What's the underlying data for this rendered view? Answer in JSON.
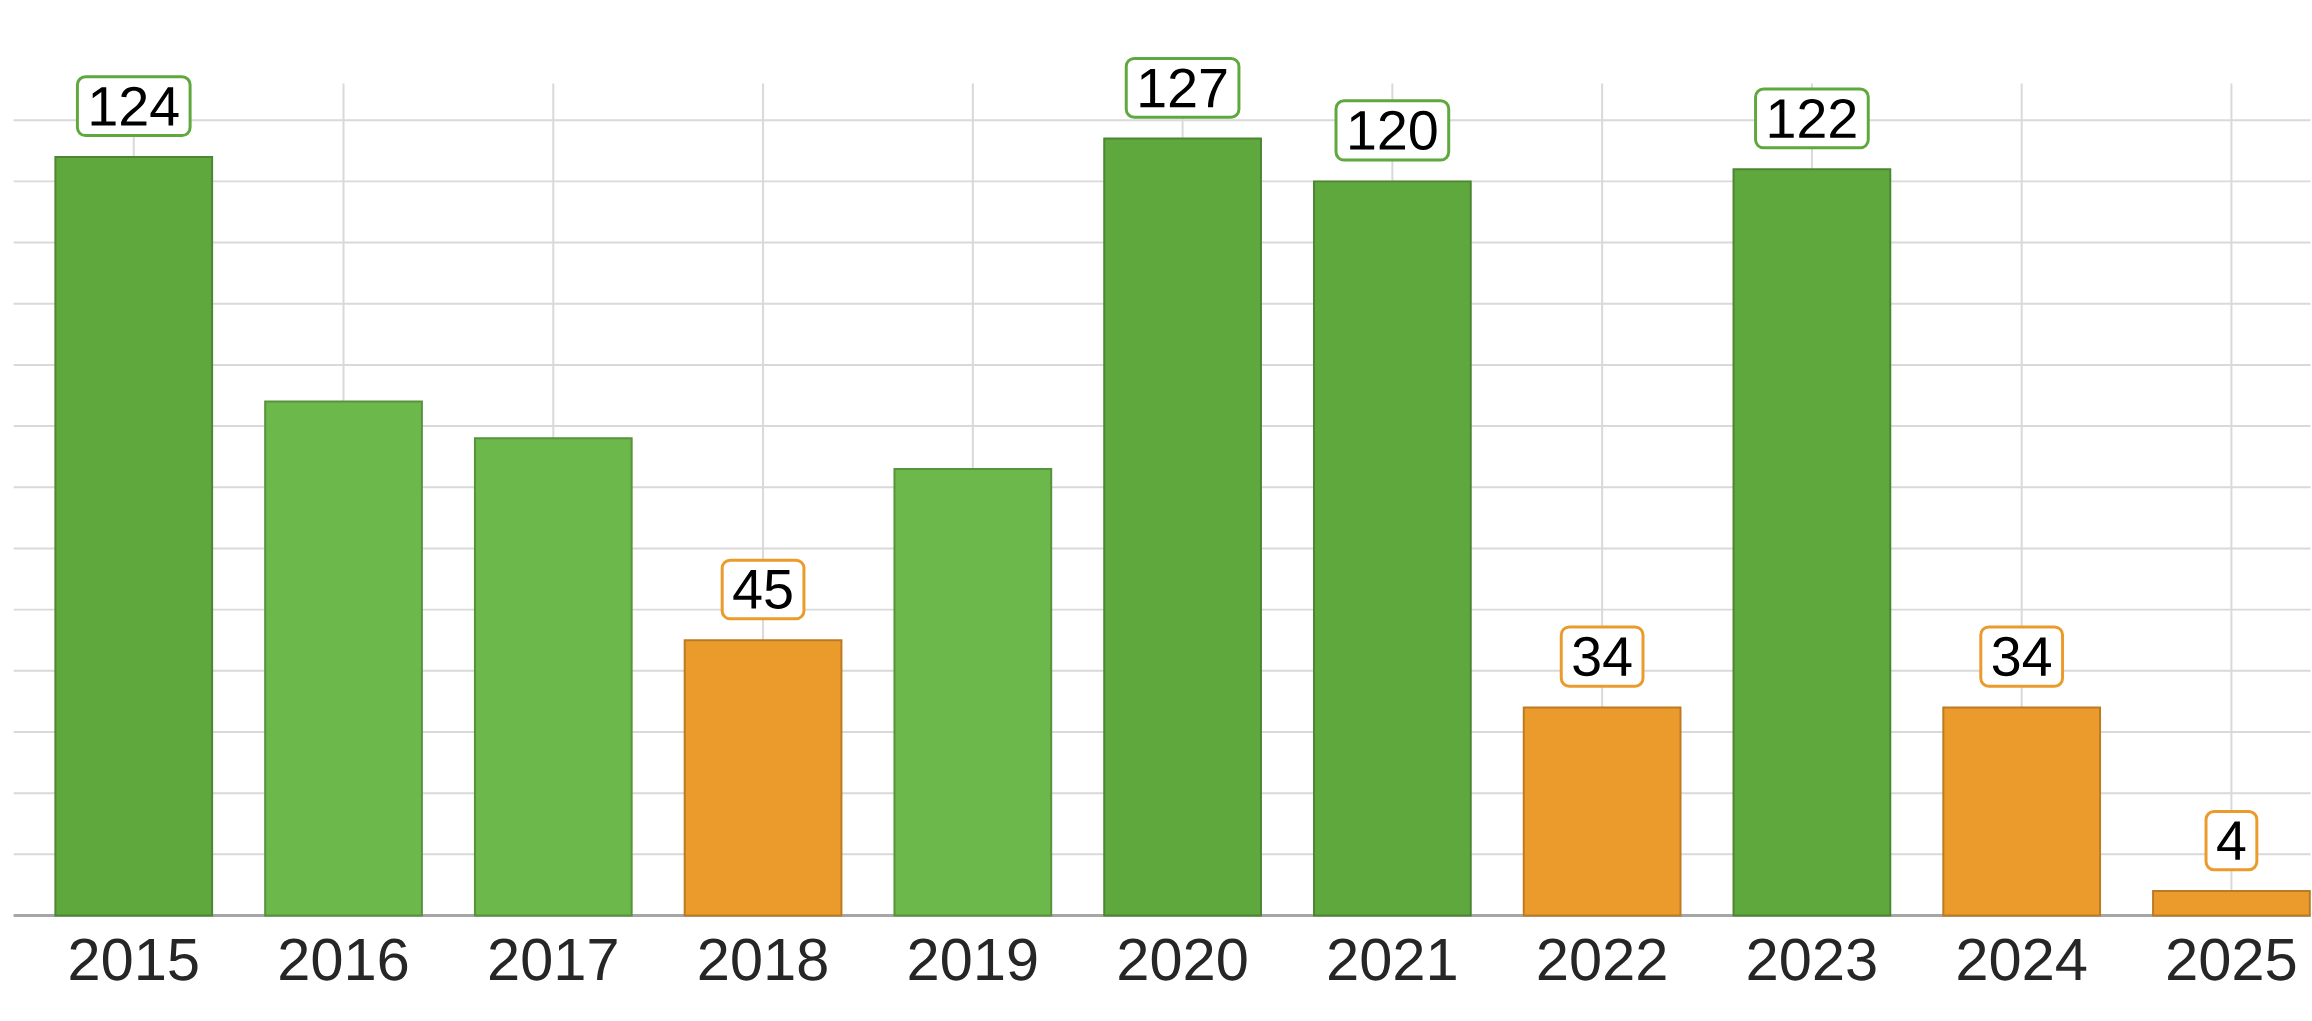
{
  "chart_data": {
    "type": "bar",
    "categories": [
      "2015",
      "2016",
      "2017",
      "2018",
      "2019",
      "2020",
      "2021",
      "2022",
      "2023",
      "2024",
      "2025"
    ],
    "values": [
      124,
      84,
      78,
      45,
      73,
      127,
      120,
      34,
      122,
      34,
      4
    ],
    "colors": [
      "#5fa83e",
      "#6db84a",
      "#6db84a",
      "#eb9a2c",
      "#6db84a",
      "#5fa83e",
      "#5fa83e",
      "#eb9a2c",
      "#5fa83e",
      "#eb9a2c",
      "#eb9a2c"
    ],
    "value_labels": [
      "124",
      null,
      null,
      "45",
      null,
      "127",
      "120",
      "34",
      "122",
      "34",
      "4"
    ],
    "ylim": [
      0,
      136
    ],
    "grid": true,
    "tick_labels": "x"
  }
}
